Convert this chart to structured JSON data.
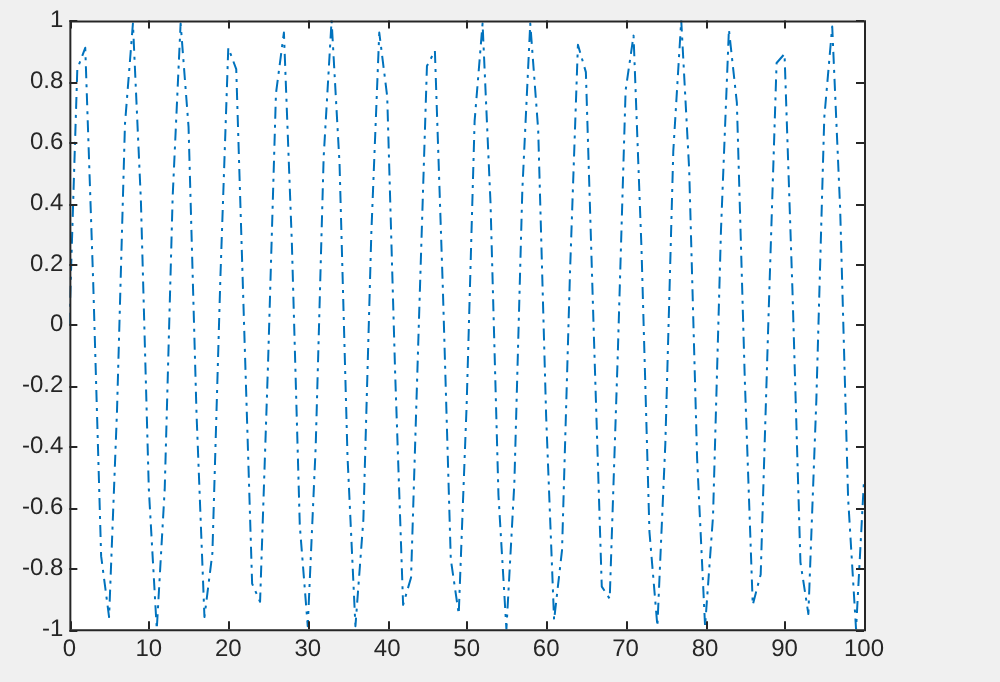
{
  "chart_data": {
    "type": "line",
    "x": [
      0,
      1,
      2,
      3,
      4,
      5,
      6,
      7,
      8,
      9,
      10,
      11,
      12,
      13,
      14,
      15,
      16,
      17,
      18,
      19,
      20,
      21,
      22,
      23,
      24,
      25,
      26,
      27,
      28,
      29,
      30,
      31,
      32,
      33,
      34,
      35,
      36,
      37,
      38,
      39,
      40,
      41,
      42,
      43,
      44,
      45,
      46,
      47,
      48,
      49,
      50,
      51,
      52,
      53,
      54,
      55,
      56,
      57,
      58,
      59,
      60,
      61,
      62,
      63,
      64,
      65,
      66,
      67,
      68,
      69,
      70,
      71,
      72,
      73,
      74,
      75,
      76,
      77,
      78,
      79,
      80,
      81,
      82,
      83,
      84,
      85,
      86,
      87,
      88,
      89,
      90,
      91,
      92,
      93,
      94,
      95,
      96,
      97,
      98,
      99,
      100
    ],
    "series": [
      {
        "color": "#0072bd",
        "values": [
          0,
          0.84,
          0.91,
          0.14,
          -0.76,
          -0.96,
          -0.28,
          0.66,
          0.99,
          0.41,
          -0.54,
          -1.0,
          -0.54,
          0.42,
          0.99,
          0.65,
          -0.29,
          -0.96,
          -0.75,
          0.15,
          0.91,
          0.84,
          -0.01,
          -0.85,
          -0.91,
          -0.13,
          0.76,
          0.96,
          0.27,
          -0.66,
          -0.99,
          -0.4,
          0.55,
          1.0,
          0.53,
          -0.43,
          -0.99,
          -0.64,
          0.3,
          0.96,
          0.75,
          -0.16,
          -0.92,
          -0.83,
          0.02,
          0.85,
          0.9,
          0.12,
          -0.77,
          -0.95,
          -0.26,
          0.67,
          0.99,
          0.4,
          -0.56,
          -1.0,
          -0.52,
          0.44,
          0.99,
          0.64,
          -0.3,
          -0.97,
          -0.74,
          0.17,
          0.92,
          0.83,
          -0.03,
          -0.86,
          -0.9,
          -0.11,
          0.77,
          0.95,
          0.25,
          -0.68,
          -0.99,
          -0.39,
          0.57,
          1.0,
          0.51,
          -0.44,
          -0.99,
          -0.63,
          0.31,
          0.97,
          0.73,
          -0.18,
          -0.92,
          -0.82,
          0.04,
          0.86,
          0.89,
          0.11,
          -0.78,
          -0.95,
          -0.25,
          0.68,
          0.98,
          0.38,
          -0.57,
          -1.0,
          -0.51
        ]
      }
    ],
    "xlim": [
      0,
      100
    ],
    "xticks": [
      0,
      10,
      20,
      30,
      40,
      50,
      60,
      70,
      80,
      90,
      100
    ],
    "ylim": [
      -1,
      1
    ],
    "yticks": [
      -1,
      -0.8,
      -0.6,
      -0.4,
      -0.2,
      0,
      0.2,
      0.4,
      0.6,
      0.8,
      1
    ],
    "grid": false,
    "legend": false,
    "marker": "none",
    "line_style": "dashed"
  }
}
